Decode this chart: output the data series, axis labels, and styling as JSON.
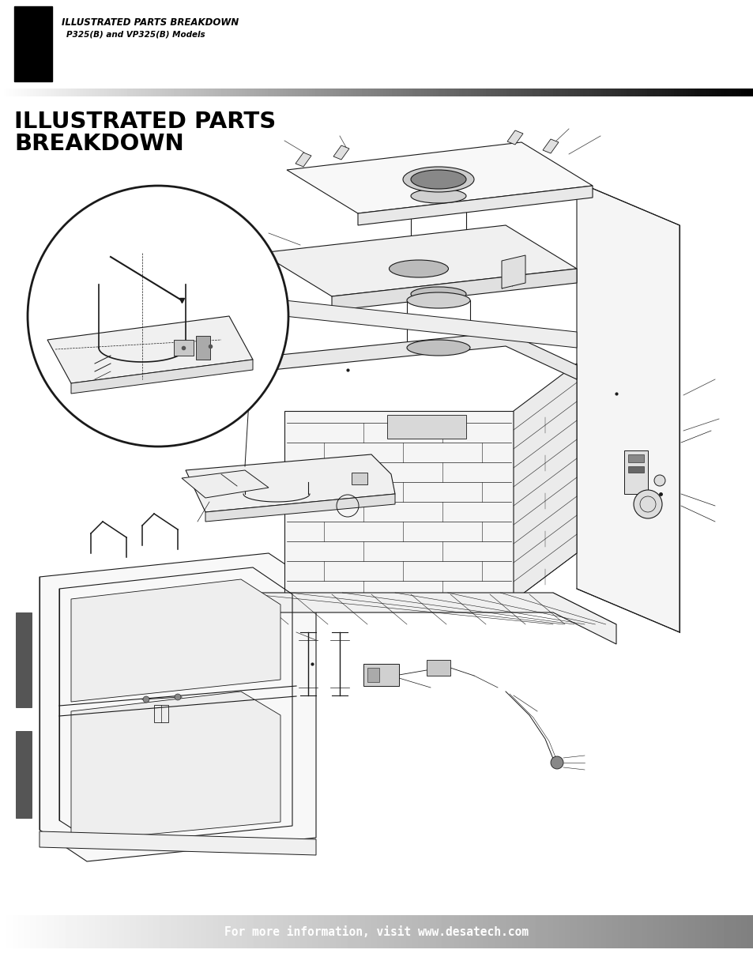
{
  "page_bg": "#ffffff",
  "header_rect_color": "#000000",
  "header_title": "ILLUSTRATED PARTS BREAKDOWN",
  "header_subtitle": "P325(B) and VP325(B) Models",
  "header_title_fontsize": 8.5,
  "header_subtitle_fontsize": 7.5,
  "section_title_line1": "ILLUSTRATED PARTS",
  "section_title_line2": "BREAKDOWN",
  "section_title_fontsize": 21,
  "footer_text": "For more information, visit www.desatech.com",
  "footer_fontsize": 10.5,
  "draw_color": "#1a1a1a"
}
